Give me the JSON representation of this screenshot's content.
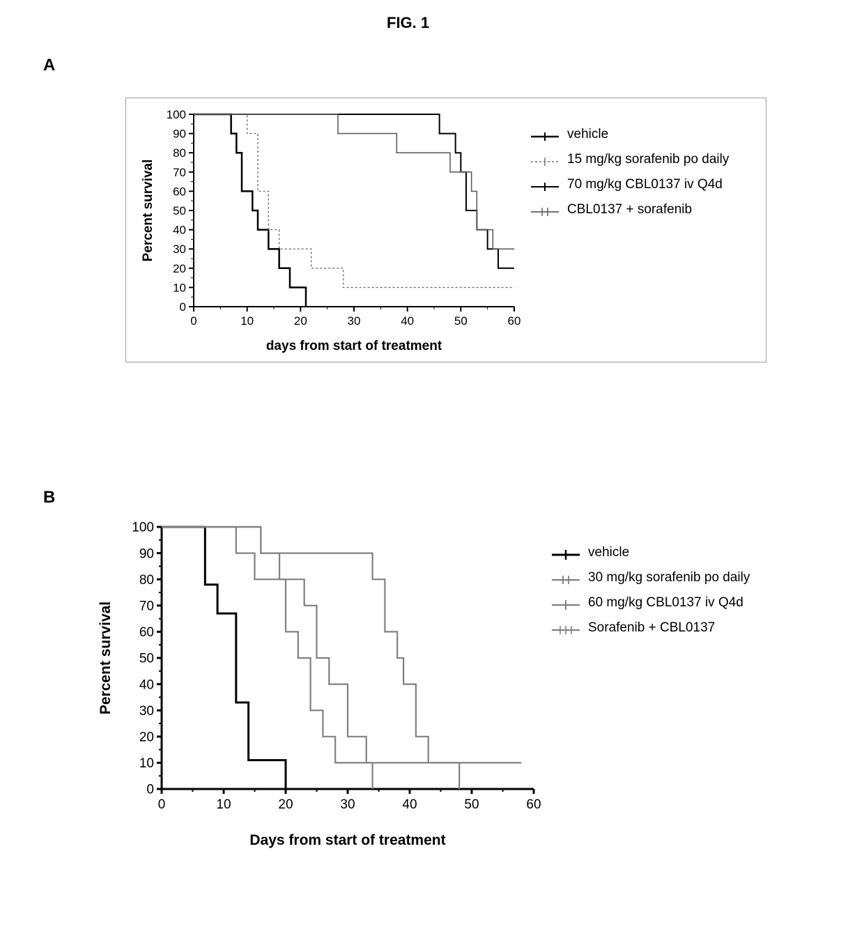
{
  "figure_title": "FIG. 1",
  "panelA": {
    "label": "A",
    "chart": {
      "type": "survival-step",
      "xlabel": "days from start of treatment",
      "ylabel": "Percent survival",
      "xlim": [
        0,
        60
      ],
      "ylim": [
        0,
        100
      ],
      "xtick_step": 10,
      "ytick_step": 10,
      "xtick_labels": [
        "0",
        "10",
        "20",
        "30",
        "40",
        "50",
        "60"
      ],
      "ytick_labels": [
        "0",
        "10",
        "20",
        "30",
        "40",
        "50",
        "60",
        "70",
        "80",
        "90",
        "100"
      ],
      "label_fontsize": 19,
      "tick_fontsize": 17,
      "axis_color": "#000000",
      "axis_width": 2,
      "bordered": true,
      "border_color": "#9e9e9e",
      "background_color": "#ffffff",
      "series": [
        {
          "name": "vehicle",
          "color": "#000000",
          "stroke_width": 2.5,
          "dash": "none",
          "tick_marks": true,
          "points": [
            [
              0,
              100
            ],
            [
              7,
              100
            ],
            [
              7,
              90
            ],
            [
              8,
              90
            ],
            [
              8,
              80
            ],
            [
              9,
              80
            ],
            [
              9,
              60
            ],
            [
              11,
              60
            ],
            [
              11,
              50
            ],
            [
              12,
              50
            ],
            [
              12,
              40
            ],
            [
              14,
              40
            ],
            [
              14,
              30
            ],
            [
              16,
              30
            ],
            [
              16,
              20
            ],
            [
              18,
              20
            ],
            [
              18,
              10
            ],
            [
              21,
              10
            ],
            [
              21,
              0
            ]
          ]
        },
        {
          "name": "15 mg/kg sorafenib po daily",
          "color": "#707070",
          "stroke_width": 1.4,
          "dash": "3 3",
          "tick_marks": true,
          "points": [
            [
              0,
              100
            ],
            [
              10,
              100
            ],
            [
              10,
              90
            ],
            [
              12,
              90
            ],
            [
              12,
              60
            ],
            [
              14,
              60
            ],
            [
              14,
              40
            ],
            [
              16,
              40
            ],
            [
              16,
              30
            ],
            [
              22,
              30
            ],
            [
              22,
              20
            ],
            [
              28,
              20
            ],
            [
              28,
              10
            ],
            [
              60,
              10
            ]
          ]
        },
        {
          "name": "70 mg/kg CBL0137 iv Q4d",
          "color": "#000000",
          "stroke_width": 2,
          "dash": "none",
          "tick_marks": true,
          "points": [
            [
              0,
              100
            ],
            [
              46,
              100
            ],
            [
              46,
              90
            ],
            [
              49,
              90
            ],
            [
              49,
              80
            ],
            [
              50,
              80
            ],
            [
              50,
              70
            ],
            [
              51,
              70
            ],
            [
              51,
              50
            ],
            [
              53,
              50
            ],
            [
              53,
              40
            ],
            [
              55,
              40
            ],
            [
              55,
              30
            ],
            [
              57,
              30
            ],
            [
              57,
              20
            ],
            [
              60,
              20
            ]
          ]
        },
        {
          "name": "CBL0137 + sorafenib",
          "color": "#606060",
          "stroke_width": 1.6,
          "dash": "none",
          "tick_marks": true,
          "points": [
            [
              0,
              100
            ],
            [
              27,
              100
            ],
            [
              27,
              90
            ],
            [
              38,
              90
            ],
            [
              38,
              80
            ],
            [
              48,
              80
            ],
            [
              48,
              70
            ],
            [
              52,
              70
            ],
            [
              52,
              60
            ],
            [
              53,
              60
            ],
            [
              53,
              40
            ],
            [
              56,
              40
            ],
            [
              56,
              30
            ],
            [
              60,
              30
            ]
          ]
        }
      ],
      "legend": {
        "items": [
          {
            "label": "vehicle",
            "swatch": "s0"
          },
          {
            "label": "15 mg/kg sorafenib po daily",
            "swatch": "s1"
          },
          {
            "label": "70 mg/kg CBL0137 iv Q4d",
            "swatch": "s2"
          },
          {
            "label": "CBL0137 + sorafenib",
            "swatch": "s3"
          }
        ]
      }
    }
  },
  "panelB": {
    "label": "B",
    "chart": {
      "type": "survival-step",
      "xlabel": "Days from start of treatment",
      "ylabel": "Percent survival",
      "xlim": [
        0,
        60
      ],
      "ylim": [
        0,
        100
      ],
      "xtick_step": 10,
      "ytick_step": 10,
      "xtick_labels": [
        "0",
        "10",
        "20",
        "30",
        "40",
        "50",
        "60"
      ],
      "ytick_labels": [
        "0",
        "10",
        "20",
        "30",
        "40",
        "50",
        "60",
        "70",
        "80",
        "90",
        "100"
      ],
      "label_fontsize": 21,
      "tick_fontsize": 19,
      "axis_color": "#000000",
      "axis_width": 3,
      "bordered": false,
      "background_color": "#ffffff",
      "series": [
        {
          "name": "vehicle",
          "color": "#000000",
          "stroke_width": 3,
          "dash": "none",
          "tick_marks": true,
          "points": [
            [
              0,
              100
            ],
            [
              7,
              100
            ],
            [
              7,
              78
            ],
            [
              9,
              78
            ],
            [
              9,
              67
            ],
            [
              12,
              67
            ],
            [
              12,
              33
            ],
            [
              14,
              33
            ],
            [
              14,
              11
            ],
            [
              20,
              11
            ],
            [
              20,
              0
            ]
          ]
        },
        {
          "name": "30 mg/kg sorafenib po daily",
          "color": "#808080",
          "stroke_width": 2.2,
          "dash": "none",
          "tick_marks": true,
          "points": [
            [
              0,
              100
            ],
            [
              12,
              100
            ],
            [
              12,
              90
            ],
            [
              15,
              90
            ],
            [
              15,
              80
            ],
            [
              20,
              80
            ],
            [
              20,
              60
            ],
            [
              22,
              60
            ],
            [
              22,
              50
            ],
            [
              24,
              50
            ],
            [
              24,
              30
            ],
            [
              26,
              30
            ],
            [
              26,
              20
            ],
            [
              28,
              20
            ],
            [
              28,
              10
            ],
            [
              34,
              10
            ],
            [
              34,
              0
            ]
          ]
        },
        {
          "name": "60 mg/kg CBL0137 iv Q4d",
          "color": "#808080",
          "stroke_width": 2.2,
          "dash": "none",
          "tick_marks": true,
          "points": [
            [
              0,
              100
            ],
            [
              16,
              100
            ],
            [
              16,
              90
            ],
            [
              19,
              90
            ],
            [
              19,
              80
            ],
            [
              23,
              80
            ],
            [
              23,
              70
            ],
            [
              25,
              70
            ],
            [
              25,
              50
            ],
            [
              27,
              50
            ],
            [
              27,
              40
            ],
            [
              30,
              40
            ],
            [
              30,
              20
            ],
            [
              33,
              20
            ],
            [
              33,
              10
            ],
            [
              58,
              10
            ]
          ]
        },
        {
          "name": "Sorafenib + CBL0137",
          "color": "#808080",
          "stroke_width": 2.2,
          "dash": "none",
          "tick_marks": true,
          "points": [
            [
              0,
              100
            ],
            [
              16,
              100
            ],
            [
              16,
              90
            ],
            [
              34,
              90
            ],
            [
              34,
              80
            ],
            [
              36,
              80
            ],
            [
              36,
              60
            ],
            [
              38,
              60
            ],
            [
              38,
              50
            ],
            [
              39,
              50
            ],
            [
              39,
              40
            ],
            [
              41,
              40
            ],
            [
              41,
              20
            ],
            [
              43,
              20
            ],
            [
              43,
              10
            ],
            [
              48,
              10
            ],
            [
              48,
              0
            ]
          ]
        }
      ],
      "legend": {
        "items": [
          {
            "label": "vehicle",
            "swatch": "b0"
          },
          {
            "label": "30 mg/kg sorafenib po daily",
            "swatch": "b1"
          },
          {
            "label": "60 mg/kg CBL0137 iv Q4d",
            "swatch": "b2"
          },
          {
            "label": "Sorafenib + CBL0137",
            "swatch": "b3"
          }
        ]
      }
    }
  }
}
